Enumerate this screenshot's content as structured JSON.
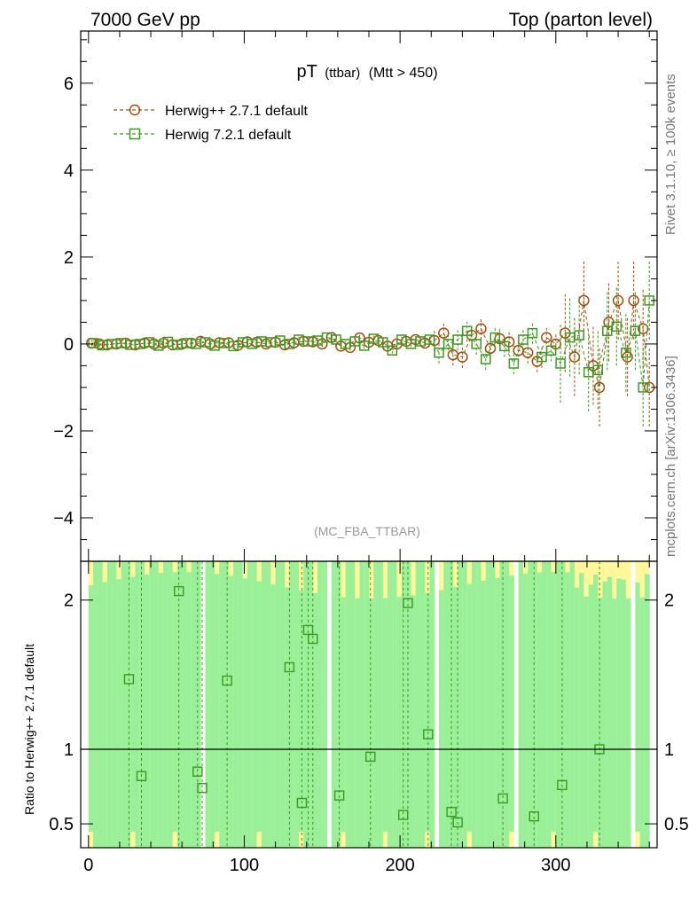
{
  "header": {
    "left": "7000 GeV pp",
    "right": "Top (parton level)"
  },
  "title": {
    "main": "pT",
    "sub1": "(ttbar)",
    "sub2": "(Mtt > 450)"
  },
  "side_label_top": "Rivet 3.1.10, ≥ 100k events",
  "side_label_bottom": "mcplots.cern.ch [arXiv:1306.3436]",
  "watermark": "(MC_FBA_TTBAR)",
  "ratio_ylabel": "Ratio to Herwig++ 2.7.1 default",
  "colors": {
    "series1": "#a0500a",
    "series2": "#3c9a1e",
    "band_green": "#99f099",
    "band_yellow": "#fff799"
  },
  "chart_data": [
    {
      "type": "scatter",
      "panel": "main",
      "xlim": [
        -5,
        365
      ],
      "ylim": [
        -5,
        7.2
      ],
      "yticks": [
        -4,
        -2,
        0,
        2,
        4,
        6
      ],
      "ytick_labels": [
        "−4",
        "−2",
        "0",
        "2",
        "4",
        "6"
      ],
      "legend_position": "top-left",
      "series": [
        {
          "name": "Herwig++ 2.7.1 default",
          "marker": "circle",
          "points": [
            [
              2,
              0.02
            ],
            [
              7,
              0.0
            ],
            [
              12,
              -0.02
            ],
            [
              18,
              0.0
            ],
            [
              24,
              0.02
            ],
            [
              30,
              -0.02
            ],
            [
              36,
              0.02
            ],
            [
              42,
              0.0
            ],
            [
              48,
              0.02
            ],
            [
              54,
              -0.02
            ],
            [
              60,
              0.0
            ],
            [
              66,
              0.02
            ],
            [
              72,
              0.06
            ],
            [
              78,
              0.0
            ],
            [
              84,
              0.03
            ],
            [
              90,
              0.03
            ],
            [
              96,
              -0.03
            ],
            [
              102,
              0.05
            ],
            [
              108,
              0.04
            ],
            [
              114,
              0.0
            ],
            [
              120,
              0.04
            ],
            [
              126,
              -0.02
            ],
            [
              132,
              0.03
            ],
            [
              138,
              0.06
            ],
            [
              144,
              0.05
            ],
            [
              150,
              0.0
            ],
            [
              156,
              0.15
            ],
            [
              162,
              -0.05
            ],
            [
              168,
              -0.08
            ],
            [
              174,
              0.14
            ],
            [
              180,
              0.04
            ],
            [
              186,
              0.08
            ],
            [
              192,
              -0.05
            ],
            [
              198,
              0.0
            ],
            [
              204,
              0.06
            ],
            [
              210,
              0.1
            ],
            [
              216,
              0.02
            ],
            [
              222,
              0.08
            ],
            [
              228,
              0.25
            ],
            [
              234,
              -0.25
            ],
            [
              240,
              -0.3
            ],
            [
              246,
              0.2
            ],
            [
              252,
              0.35
            ],
            [
              258,
              -0.1
            ],
            [
              264,
              0.12
            ],
            [
              270,
              0.05
            ],
            [
              276,
              -0.15
            ],
            [
              282,
              -0.2
            ],
            [
              288,
              -0.4
            ],
            [
              294,
              0.15
            ],
            [
              300,
              0.0
            ],
            [
              306,
              0.25
            ],
            [
              312,
              -0.3
            ],
            [
              318,
              1.0
            ],
            [
              324,
              -0.5
            ],
            [
              328,
              -1.0
            ],
            [
              334,
              0.5
            ],
            [
              340,
              1.0
            ],
            [
              346,
              -0.3
            ],
            [
              350,
              1.0
            ],
            [
              356,
              0.35
            ],
            [
              360,
              -1.0
            ]
          ]
        },
        {
          "name": "Herwig 7.2.1 default",
          "marker": "square",
          "points": [
            [
              3,
              0.02
            ],
            [
              9,
              -0.03
            ],
            [
              15,
              0.0
            ],
            [
              21,
              0.02
            ],
            [
              27,
              -0.02
            ],
            [
              33,
              0.0
            ],
            [
              39,
              0.04
            ],
            [
              45,
              -0.04
            ],
            [
              51,
              0.05
            ],
            [
              57,
              -0.02
            ],
            [
              63,
              0.02
            ],
            [
              69,
              0.0
            ],
            [
              75,
              0.04
            ],
            [
              81,
              -0.04
            ],
            [
              87,
              0.02
            ],
            [
              93,
              -0.05
            ],
            [
              99,
              0.04
            ],
            [
              105,
              0.0
            ],
            [
              111,
              0.06
            ],
            [
              117,
              0.04
            ],
            [
              123,
              0.08
            ],
            [
              129,
              0.0
            ],
            [
              135,
              0.1
            ],
            [
              141,
              0.06
            ],
            [
              147,
              0.08
            ],
            [
              153,
              0.15
            ],
            [
              159,
              0.1
            ],
            [
              165,
              0.0
            ],
            [
              171,
              0.06
            ],
            [
              177,
              -0.04
            ],
            [
              183,
              0.12
            ],
            [
              189,
              0.04
            ],
            [
              195,
              -0.15
            ],
            [
              201,
              0.1
            ],
            [
              207,
              0.0
            ],
            [
              213,
              0.06
            ],
            [
              219,
              0.1
            ],
            [
              225,
              -0.2
            ],
            [
              231,
              0.0
            ],
            [
              237,
              0.1
            ],
            [
              243,
              0.3
            ],
            [
              249,
              0.0
            ],
            [
              255,
              -0.35
            ],
            [
              261,
              0.15
            ],
            [
              267,
              -0.05
            ],
            [
              273,
              -0.45
            ],
            [
              279,
              0.1
            ],
            [
              285,
              0.25
            ],
            [
              291,
              -0.3
            ],
            [
              297,
              -0.15
            ],
            [
              303,
              -0.45
            ],
            [
              309,
              0.15
            ],
            [
              315,
              0.2
            ],
            [
              321,
              -0.65
            ],
            [
              327,
              -0.6
            ],
            [
              333,
              0.3
            ],
            [
              339,
              0.4
            ],
            [
              345,
              -0.2
            ],
            [
              351,
              0.3
            ],
            [
              356,
              -1.0
            ],
            [
              360,
              1.0
            ]
          ]
        }
      ]
    },
    {
      "type": "scatter",
      "panel": "ratio",
      "ylabel": "Ratio to Herwig++ 2.7.1 default",
      "xlim": [
        -5,
        365
      ],
      "ylim": [
        0.34,
        2.26
      ],
      "yticks": [
        0.5,
        1,
        2
      ],
      "ytick_labels": [
        "0.5",
        "1",
        "2"
      ],
      "xticks": [
        0,
        100,
        200,
        300
      ],
      "xtick_labels": [
        "0",
        "100",
        "200",
        "300"
      ],
      "reference_line": 1,
      "points": [
        [
          26,
          1.47
        ],
        [
          34,
          0.82
        ],
        [
          58,
          2.06
        ],
        [
          70,
          0.85
        ],
        [
          73,
          0.74
        ],
        [
          89,
          1.46
        ],
        [
          129,
          1.55
        ],
        [
          137,
          0.64
        ],
        [
          141,
          1.8
        ],
        [
          144,
          1.74
        ],
        [
          161,
          0.69
        ],
        [
          181,
          0.95
        ],
        [
          202,
          0.56
        ],
        [
          205,
          1.98
        ],
        [
          218,
          1.1
        ],
        [
          233,
          0.58
        ],
        [
          237,
          0.51
        ],
        [
          266,
          0.67
        ],
        [
          286,
          0.55
        ],
        [
          304,
          0.76
        ],
        [
          328,
          1.0
        ]
      ]
    }
  ]
}
